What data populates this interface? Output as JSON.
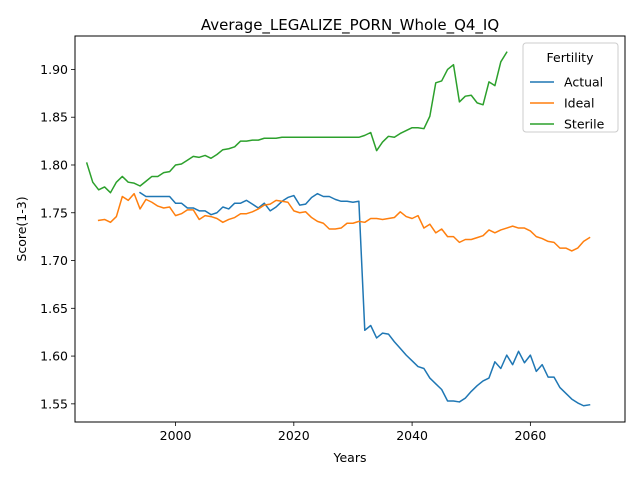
{
  "chart_data": {
    "type": "line",
    "title": "Average_LEGALIZE_PORN_Whole_Q4_IQ",
    "xlabel": "Years",
    "ylabel": "Score(1-3)",
    "xlim": [
      1983,
      2076
    ],
    "ylim": [
      1.531,
      1.935
    ],
    "xticks": [
      2000,
      2020,
      2040,
      2060
    ],
    "yticks": [
      1.55,
      1.6,
      1.65,
      1.7,
      1.75,
      1.8,
      1.85,
      1.9
    ],
    "ytick_labels": [
      "1.55",
      "1.60",
      "1.65",
      "1.70",
      "1.75",
      "1.80",
      "1.85",
      "1.90"
    ],
    "grid": false,
    "legend": {
      "title": "Fertility",
      "position": "top-right"
    },
    "series": [
      {
        "name": "Actual",
        "color": "#1f77b4",
        "x": [
          1994,
          1995,
          1996,
          1997,
          1998,
          1999,
          2000,
          2001,
          2002,
          2003,
          2004,
          2005,
          2006,
          2007,
          2008,
          2009,
          2010,
          2011,
          2012,
          2013,
          2014,
          2015,
          2016,
          2017,
          2018,
          2019,
          2020,
          2021,
          2022,
          2023,
          2024,
          2025,
          2026,
          2027,
          2028,
          2029,
          2030,
          2031,
          2032,
          2033,
          2034,
          2035,
          2036,
          2037,
          2038,
          2039,
          2040,
          2041,
          2042,
          2043,
          2044,
          2045,
          2046,
          2047,
          2048,
          2049,
          2050,
          2051,
          2052,
          2053,
          2054,
          2055,
          2056,
          2057,
          2058,
          2059,
          2060,
          2061,
          2062,
          2063,
          2064,
          2065,
          2066,
          2067,
          2068,
          2069,
          2070
        ],
        "y": [
          1.771,
          1.767,
          1.767,
          1.767,
          1.767,
          1.767,
          1.76,
          1.76,
          1.755,
          1.755,
          1.752,
          1.752,
          1.748,
          1.75,
          1.756,
          1.754,
          1.76,
          1.76,
          1.763,
          1.759,
          1.755,
          1.76,
          1.752,
          1.756,
          1.762,
          1.766,
          1.768,
          1.758,
          1.759,
          1.766,
          1.77,
          1.767,
          1.767,
          1.764,
          1.762,
          1.762,
          1.761,
          1.762,
          1.627,
          1.632,
          1.619,
          1.624,
          1.623,
          1.615,
          1.608,
          1.601,
          1.595,
          1.589,
          1.587,
          1.577,
          1.571,
          1.565,
          1.553,
          1.553,
          1.552,
          1.556,
          1.563,
          1.569,
          1.574,
          1.577,
          1.594,
          1.587,
          1.601,
          1.591,
          1.605,
          1.593,
          1.601,
          1.584,
          1.591,
          1.578,
          1.578,
          1.567,
          1.561,
          1.555,
          1.551,
          1.548,
          1.549
        ]
      },
      {
        "name": "Ideal",
        "color": "#ff7f0e",
        "x": [
          1987,
          1988,
          1989,
          1990,
          1991,
          1992,
          1993,
          1994,
          1995,
          1996,
          1997,
          1998,
          1999,
          2000,
          2001,
          2002,
          2003,
          2004,
          2005,
          2006,
          2007,
          2008,
          2009,
          2010,
          2011,
          2012,
          2013,
          2014,
          2015,
          2016,
          2017,
          2018,
          2019,
          2020,
          2021,
          2022,
          2023,
          2024,
          2025,
          2026,
          2027,
          2028,
          2029,
          2030,
          2031,
          2032,
          2033,
          2034,
          2035,
          2036,
          2037,
          2038,
          2039,
          2040,
          2041,
          2042,
          2043,
          2044,
          2045,
          2046,
          2047,
          2048,
          2049,
          2050,
          2051,
          2052,
          2053,
          2054,
          2055,
          2056,
          2057,
          2058,
          2059,
          2060,
          2061,
          2062,
          2063,
          2064,
          2065,
          2066,
          2067,
          2068,
          2069,
          2070
        ],
        "y": [
          1.742,
          1.743,
          1.74,
          1.746,
          1.767,
          1.763,
          1.77,
          1.754,
          1.764,
          1.761,
          1.757,
          1.755,
          1.756,
          1.747,
          1.749,
          1.753,
          1.753,
          1.743,
          1.747,
          1.746,
          1.744,
          1.74,
          1.743,
          1.745,
          1.749,
          1.749,
          1.751,
          1.754,
          1.758,
          1.759,
          1.763,
          1.762,
          1.761,
          1.752,
          1.75,
          1.751,
          1.745,
          1.741,
          1.739,
          1.733,
          1.733,
          1.734,
          1.739,
          1.739,
          1.741,
          1.74,
          1.744,
          1.744,
          1.743,
          1.744,
          1.745,
          1.751,
          1.746,
          1.744,
          1.747,
          1.734,
          1.738,
          1.729,
          1.733,
          1.725,
          1.725,
          1.719,
          1.722,
          1.722,
          1.724,
          1.726,
          1.732,
          1.729,
          1.732,
          1.734,
          1.736,
          1.734,
          1.734,
          1.731,
          1.725,
          1.723,
          1.72,
          1.719,
          1.713,
          1.713,
          1.71,
          1.713,
          1.72,
          1.724
        ]
      },
      {
        "name": "Sterile",
        "color": "#2ca02c",
        "x": [
          1985,
          1986,
          1987,
          1988,
          1989,
          1990,
          1991,
          1992,
          1993,
          1994,
          1995,
          1996,
          1997,
          1998,
          1999,
          2000,
          2001,
          2002,
          2003,
          2004,
          2005,
          2006,
          2007,
          2008,
          2009,
          2010,
          2011,
          2012,
          2013,
          2014,
          2015,
          2016,
          2017,
          2018,
          2019,
          2020,
          2021,
          2022,
          2023,
          2024,
          2025,
          2026,
          2027,
          2028,
          2029,
          2030,
          2031,
          2032,
          2033,
          2034,
          2035,
          2036,
          2037,
          2038,
          2039,
          2040,
          2041,
          2042,
          2043,
          2044,
          2045,
          2046,
          2047,
          2048,
          2049,
          2050,
          2051,
          2052,
          2053,
          2054,
          2055,
          2056
        ],
        "y": [
          1.802,
          1.782,
          1.774,
          1.777,
          1.771,
          1.782,
          1.788,
          1.782,
          1.781,
          1.778,
          1.783,
          1.788,
          1.788,
          1.792,
          1.793,
          1.8,
          1.801,
          1.805,
          1.809,
          1.808,
          1.81,
          1.807,
          1.811,
          1.816,
          1.817,
          1.819,
          1.825,
          1.825,
          1.826,
          1.826,
          1.828,
          1.828,
          1.828,
          1.829,
          1.829,
          1.829,
          1.829,
          1.829,
          1.829,
          1.829,
          1.829,
          1.829,
          1.829,
          1.829,
          1.829,
          1.829,
          1.829,
          1.831,
          1.834,
          1.815,
          1.824,
          1.83,
          1.829,
          1.833,
          1.836,
          1.839,
          1.839,
          1.838,
          1.851,
          1.886,
          1.888,
          1.9,
          1.905,
          1.866,
          1.872,
          1.873,
          1.865,
          1.863,
          1.887,
          1.883,
          1.908,
          1.918
        ]
      }
    ]
  }
}
